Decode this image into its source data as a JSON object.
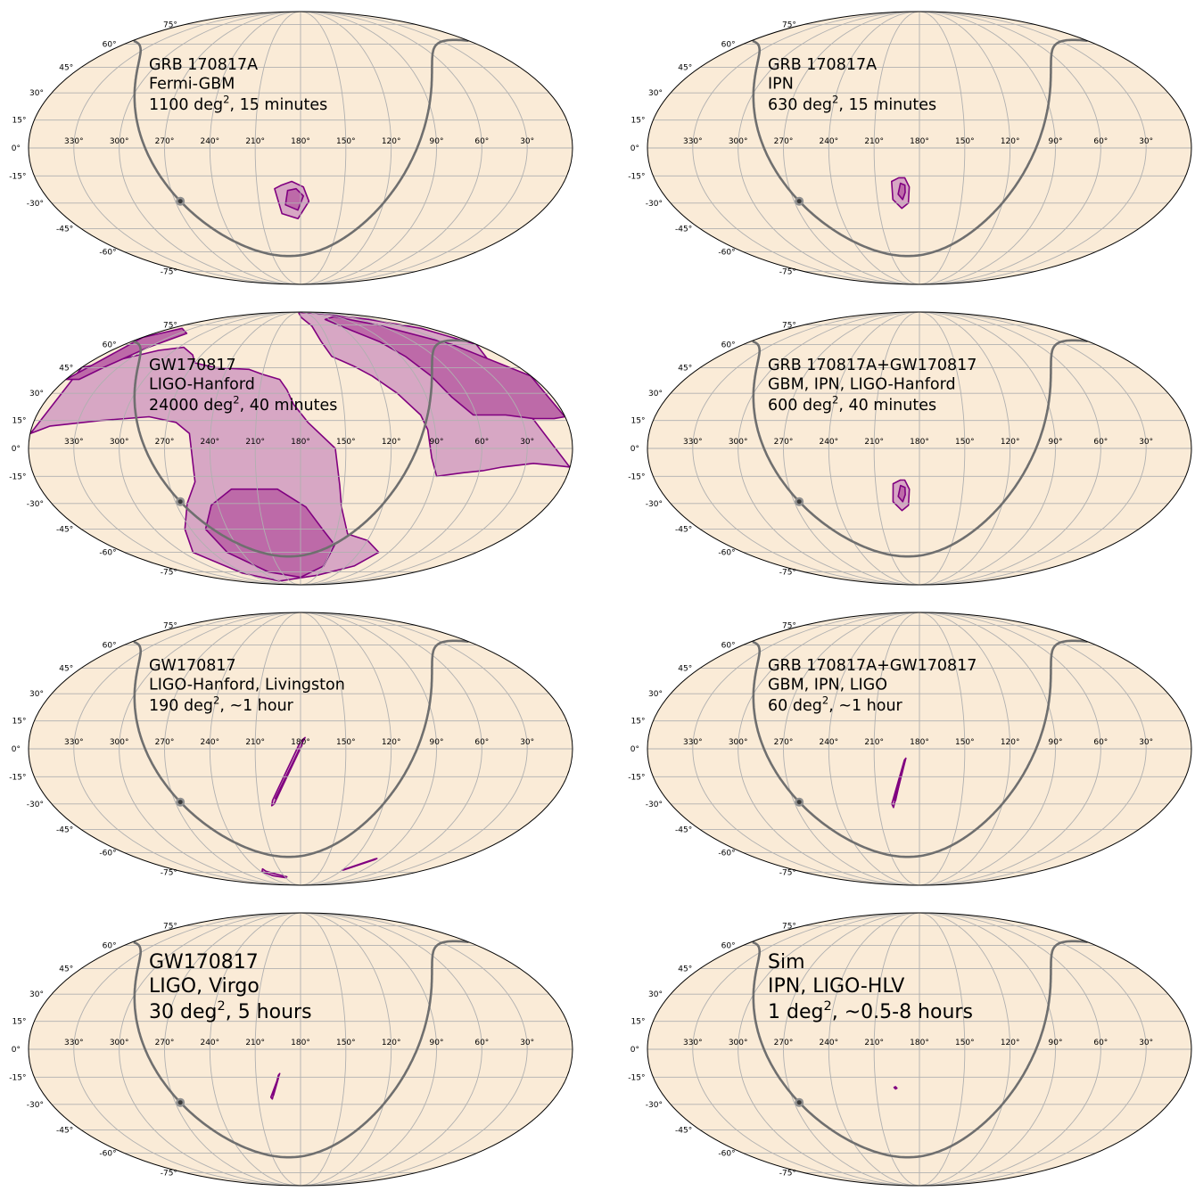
{
  "figure": {
    "background_color": "#faebd7",
    "grid_color": "#b0b0b0",
    "galactic_plane_color": "#6f6f6f",
    "outer_contour_fill": "#d7a7c4",
    "inner_contour_fill": "#bd6aa8",
    "contour_edge": "#800080",
    "lon_tick_labels": [
      "330°",
      "300°",
      "270°",
      "240°",
      "210°",
      "180°",
      "150°",
      "120°",
      "90°",
      "60°",
      "30°"
    ],
    "lat_tick_labels": [
      "75°",
      "60°",
      "45°",
      "30°",
      "15°",
      "0°",
      "-15°",
      "-30°",
      "-45°",
      "-60°",
      "-75°"
    ]
  },
  "chart_data": [
    {
      "type": "skymap",
      "projection": "mollweide",
      "title_lines": [
        "GRB 170817A",
        "Fermi-GBM"
      ],
      "area_value": "1100 deg",
      "area_exp": "2",
      "time_text": ", 15 minutes",
      "localization_area_deg2": 1100,
      "contours": [
        {
          "level": "outer",
          "points": [
            [
              193,
              -20
            ],
            [
              198,
              -22
            ],
            [
              194,
              -36
            ],
            [
              182,
              -39
            ],
            [
              174,
              -29
            ],
            [
              178,
              -21
            ],
            [
              186,
              -18
            ]
          ]
        },
        {
          "level": "inner",
          "points": [
            [
              189,
              -23
            ],
            [
              191,
              -31
            ],
            [
              182,
              -34
            ],
            [
              178,
              -26
            ],
            [
              183,
              -22
            ]
          ]
        }
      ]
    },
    {
      "type": "skymap",
      "projection": "mollweide",
      "title_lines": [
        "GRB 170817A",
        "IPN"
      ],
      "area_value": "630 deg",
      "area_exp": "2",
      "time_text": ", 15 minutes",
      "localization_area_deg2": 630,
      "contours": [
        {
          "level": "outer",
          "points": [
            [
              194,
              -16
            ],
            [
              199,
              -18
            ],
            [
              199,
              -28
            ],
            [
              193,
              -33
            ],
            [
              188,
              -30
            ],
            [
              187,
              -21
            ],
            [
              190,
              -16
            ]
          ]
        },
        {
          "level": "inner",
          "points": [
            [
              193,
              -19
            ],
            [
              195,
              -25
            ],
            [
              192,
              -28
            ],
            [
              190,
              -24
            ],
            [
              190,
              -20
            ]
          ]
        }
      ]
    },
    {
      "type": "skymap",
      "projection": "mollweide",
      "title_lines": [
        "GW170817",
        "LIGO-Hanford"
      ],
      "area_value": "24000 deg",
      "area_exp": "2",
      "time_text": ", 40 minutes",
      "localization_area_deg2": 24000,
      "contours": [
        {
          "level": "outer",
          "points": [
            [
              200,
              89
            ],
            [
              178,
              82
            ],
            [
              163,
              74
            ],
            [
              158,
              62
            ],
            [
              152,
              52
            ],
            [
              136,
              46
            ],
            [
              124,
              40
            ],
            [
              110,
              30
            ],
            [
              98,
              18
            ],
            [
              95,
              10
            ],
            [
              93,
              -5
            ],
            [
              88,
              -15
            ],
            [
              70,
              -13
            ],
            [
              58,
              -12
            ],
            [
              45,
              -10
            ],
            [
              25,
              -8
            ],
            [
              12,
              -9
            ],
            [
              0.2,
              -10
            ],
            [
              0.2,
              60
            ],
            [
              12,
              72
            ],
            [
              40,
              80
            ],
            [
              100,
              87
            ]
          ]
        },
        {
          "level": "outer",
          "points": [
            [
              295,
              58
            ],
            [
              278,
              53
            ],
            [
              270,
              48
            ],
            [
              250,
              45
            ],
            [
              222,
              44
            ],
            [
              210,
              41
            ],
            [
              196,
              38
            ],
            [
              190,
              32
            ],
            [
              185,
              24
            ],
            [
              175,
              14
            ],
            [
              157,
              0
            ],
            [
              153,
              -20
            ],
            [
              150,
              -32
            ],
            [
              140,
              -48
            ],
            [
              120,
              -52
            ],
            [
              100,
              -60
            ],
            [
              110,
              -70
            ],
            [
              150,
              -78
            ],
            [
              240,
              -84
            ],
            [
              275,
              -76
            ],
            [
              290,
              -60
            ],
            [
              275,
              -45
            ],
            [
              262,
              -30
            ],
            [
              252,
              -18
            ],
            [
              252,
              -3
            ],
            [
              254,
              8
            ],
            [
              264,
              14
            ],
            [
              283,
              17
            ],
            [
              315,
              15
            ],
            [
              348,
              12
            ],
            [
              359.8,
              8
            ],
            [
              359.8,
              45
            ],
            [
              338,
              50
            ],
            [
              315,
              56
            ]
          ]
        },
        {
          "level": "inner",
          "points": [
            [
              130,
              80
            ],
            [
              112,
              70
            ],
            [
              96,
              62
            ],
            [
              86,
              52
            ],
            [
              78,
              40
            ],
            [
              72,
              28
            ],
            [
              62,
              18
            ],
            [
              40,
              18
            ],
            [
              22,
              16
            ],
            [
              8,
              16
            ],
            [
              0.2,
              17
            ],
            [
              0.2,
              40
            ],
            [
              25,
              60
            ],
            [
              60,
              75
            ],
            [
              95,
              83
            ]
          ]
        },
        {
          "level": "inner",
          "points": [
            [
              320,
              68
            ],
            [
              330,
              58
            ],
            [
              342,
              45
            ],
            [
              350,
              38
            ],
            [
              359.8,
              38
            ],
            [
              359.8,
              65
            ],
            [
              345,
              72
            ]
          ]
        },
        {
          "level": "inner",
          "points": [
            [
              228,
              -22
            ],
            [
              245,
              -31
            ],
            [
              258,
              -45
            ],
            [
              255,
              -60
            ],
            [
              230,
              -75
            ],
            [
              180,
              -80
            ],
            [
              150,
              -70
            ],
            [
              148,
              -55
            ],
            [
              162,
              -45
            ],
            [
              176,
              -32
            ],
            [
              196,
              -22
            ]
          ]
        }
      ]
    },
    {
      "type": "skymap",
      "projection": "mollweide",
      "title_lines": [
        "GRB 170817A+GW170817",
        "GBM, IPN, LIGO-Hanford"
      ],
      "area_value": "600 deg",
      "area_exp": "2",
      "time_text": ", 40 minutes",
      "localization_area_deg2": 600,
      "contours": [
        {
          "level": "outer",
          "points": [
            [
              193,
              -17
            ],
            [
              198,
              -19
            ],
            [
              199,
              -29
            ],
            [
              193,
              -34
            ],
            [
              188,
              -31
            ],
            [
              187,
              -22
            ],
            [
              190,
              -17
            ]
          ]
        },
        {
          "level": "inner",
          "points": [
            [
              193,
              -20
            ],
            [
              195,
              -26
            ],
            [
              192,
              -29
            ],
            [
              190,
              -25
            ],
            [
              190,
              -21
            ]
          ]
        }
      ]
    },
    {
      "type": "skymap",
      "projection": "mollweide",
      "title_lines": [
        "GW170817",
        "LIGO-Hanford, Livingston"
      ],
      "area_value": "190 deg",
      "area_exp": "2",
      "time_text": ", ~1 hour",
      "localization_area_deg2": 190,
      "contours": [
        {
          "level": "outer",
          "points": [
            [
              177,
              6
            ],
            [
              179,
              3
            ],
            [
              199,
              -30
            ],
            [
              201,
              -31
            ],
            [
              200,
              -28
            ],
            [
              180,
              4
            ]
          ]
        },
        {
          "level": "inner",
          "points": [
            [
              180,
              1
            ],
            [
              198,
              -27
            ],
            [
              197,
              -27
            ],
            [
              179,
              2
            ]
          ]
        },
        {
          "level": "outer",
          "points": [
            [
              233,
              -72
            ],
            [
              239,
              -74.5
            ],
            [
              230,
              -78
            ],
            [
              210,
              -80
            ],
            [
              206,
              -79
            ],
            [
              218,
              -77
            ],
            [
              232,
              -74
            ]
          ]
        },
        {
          "level": "outer",
          "points": [
            [
              95,
              -64
            ],
            [
              97,
              -64.5
            ],
            [
              120,
              -73
            ],
            [
              118,
              -73
            ],
            [
              96,
              -65
            ]
          ]
        }
      ]
    },
    {
      "type": "skymap",
      "projection": "mollweide",
      "title_lines": [
        "GRB 170817A+GW170817",
        "GBM, IPN, LIGO"
      ],
      "area_value": "60 deg",
      "area_exp": "2",
      "time_text": ", ~1 hour",
      "localization_area_deg2": 60,
      "contours": [
        {
          "level": "outer",
          "points": [
            [
              190,
              -6
            ],
            [
              189,
              -5
            ],
            [
              199,
              -32
            ],
            [
              200,
              -30
            ]
          ]
        },
        {
          "level": "inner",
          "points": [
            [
              190.5,
              -8
            ],
            [
              198,
              -28
            ],
            [
              197,
              -28
            ]
          ]
        }
      ]
    },
    {
      "type": "skymap",
      "projection": "mollweide",
      "title_lines": [
        "GW170817",
        "LIGO, Virgo"
      ],
      "area_value": "30 deg",
      "area_exp": "2",
      "time_text": ", 5 hours",
      "localization_area_deg2": 30,
      "contours": [
        {
          "level": "outer",
          "points": [
            [
              195,
              -14
            ],
            [
              194,
              -13
            ],
            [
              201,
              -26
            ],
            [
              200,
              -27
            ]
          ]
        },
        {
          "level": "inner",
          "points": [
            [
              195,
              -15.5
            ],
            [
              199.5,
              -24.5
            ],
            [
              199,
              -25
            ]
          ]
        }
      ]
    },
    {
      "type": "skymap",
      "projection": "mollweide",
      "title_lines": [
        "Sim",
        "IPN, LIGO-HLV"
      ],
      "area_value": "1 deg",
      "area_exp": "2",
      "time_text": ", ~0.5-8 hours",
      "localization_area_deg2": 1,
      "contours": [
        {
          "level": "outer",
          "points": [
            [
              196.5,
              -20.2
            ],
            [
              197.5,
              -20.6
            ],
            [
              196.5,
              -21.4
            ],
            [
              195.5,
              -21
            ]
          ]
        }
      ]
    }
  ]
}
